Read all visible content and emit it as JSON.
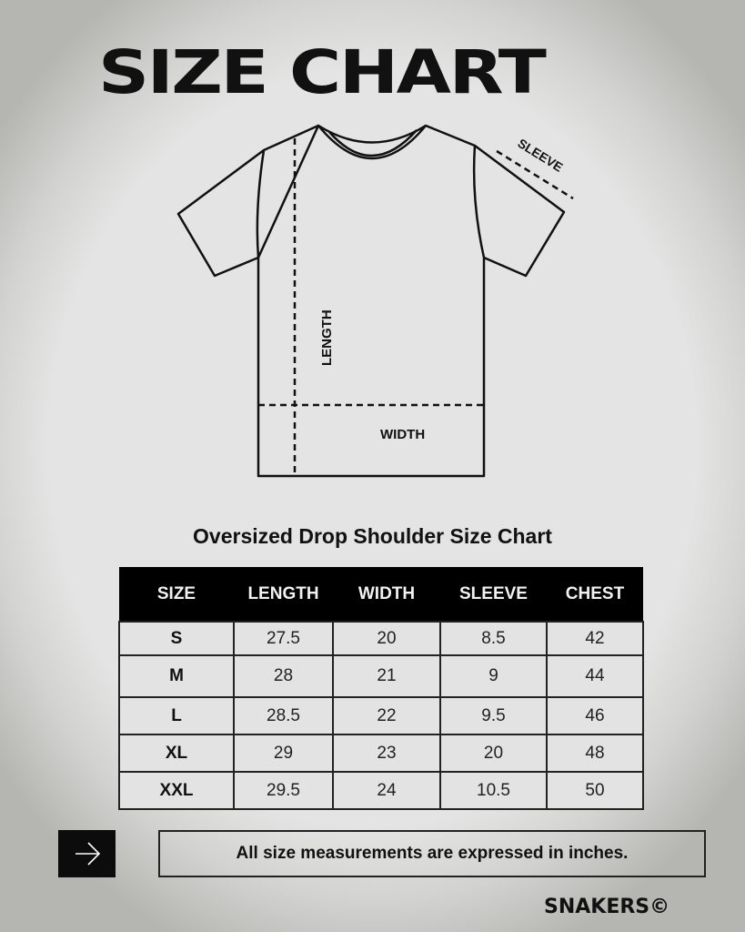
{
  "title": "SIZE CHART",
  "diagram": {
    "labels": {
      "sleeve": "SLEEVE",
      "length": "LENGTH",
      "width": "WIDTH"
    }
  },
  "subtitle": "Oversized Drop Shoulder Size Chart",
  "table": {
    "headers": [
      "SIZE",
      "LENGTH",
      "WIDTH",
      "SLEEVE",
      "CHEST"
    ],
    "rows": [
      [
        "S",
        "27.5",
        "20",
        "8.5",
        "42"
      ],
      [
        "M",
        "28",
        "21",
        "9",
        "44"
      ],
      [
        "L",
        "28.5",
        "22",
        "9.5",
        "46"
      ],
      [
        "XL",
        "29",
        "23",
        "20",
        "48"
      ],
      [
        "XXL",
        "29.5",
        "24",
        "10.5",
        "50"
      ]
    ]
  },
  "note": {
    "icon": "arrow-right-icon",
    "text": "All size measurements are expressed in inches."
  },
  "brand": "SNAKERS©"
}
